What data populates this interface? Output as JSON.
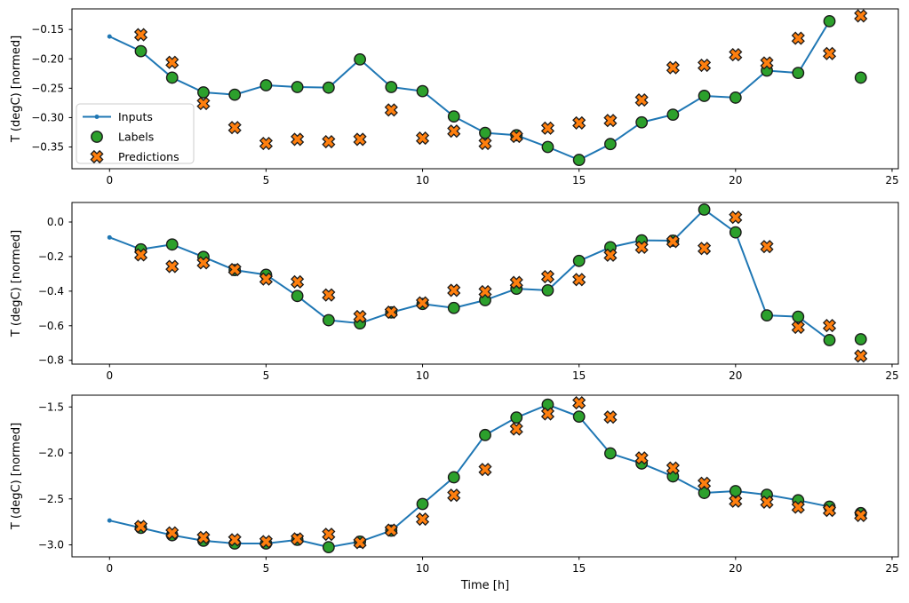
{
  "figure": {
    "xlabel": "Time [h]",
    "ylabel": "T (degC) [normed]",
    "background": "#ffffff",
    "axis_color": "#000000",
    "legend": {
      "entries": [
        {
          "label": "Inputs",
          "marker": "line-dot",
          "color": "#1f77b4"
        },
        {
          "label": "Labels",
          "marker": "circle",
          "color": "#2ca02c"
        },
        {
          "label": "Predictions",
          "marker": "x-cross",
          "color": "#ff7f0e"
        }
      ],
      "border_color": "#cccccc"
    },
    "marker_edge_color": "#1a1a1a",
    "x_ticks": [
      0,
      5,
      10,
      15,
      20,
      25
    ],
    "x_tick_labels": [
      "0",
      "5",
      "10",
      "15",
      "20",
      "25"
    ],
    "xlim": [
      -1.2,
      25.2
    ]
  },
  "chart_data": [
    {
      "type": "line",
      "title": "",
      "ylabel": "T (degC) [normed]",
      "xlabel": "",
      "ylim": [
        -0.387,
        -0.115
      ],
      "yticks": [
        -0.15,
        -0.2,
        -0.25,
        -0.3,
        -0.35
      ],
      "ytick_labels": [
        "−0.15",
        "−0.20",
        "−0.25",
        "−0.30",
        "−0.35"
      ],
      "grid": false,
      "legend_position": "center left",
      "series": [
        {
          "name": "Inputs",
          "style": "line+dots",
          "x": [
            0,
            1,
            2,
            3,
            4,
            5,
            6,
            7,
            8,
            9,
            10,
            11,
            12,
            13,
            14,
            15,
            16,
            17,
            18,
            19,
            20,
            21,
            22,
            23
          ],
          "y": [
            -0.162,
            -0.187,
            -0.232,
            -0.257,
            -0.261,
            -0.245,
            -0.248,
            -0.249,
            -0.201,
            -0.248,
            -0.255,
            -0.298,
            -0.326,
            -0.33,
            -0.35,
            -0.372,
            -0.345,
            -0.308,
            -0.295,
            -0.263,
            -0.266,
            -0.22,
            -0.224,
            -0.136
          ]
        },
        {
          "name": "Labels",
          "style": "scatter-circle",
          "x": [
            1,
            2,
            3,
            4,
            5,
            6,
            7,
            8,
            9,
            10,
            11,
            12,
            13,
            14,
            15,
            16,
            17,
            18,
            19,
            20,
            21,
            22,
            23,
            24
          ],
          "y": [
            -0.187,
            -0.232,
            -0.257,
            -0.261,
            -0.245,
            -0.248,
            -0.249,
            -0.201,
            -0.248,
            -0.255,
            -0.298,
            -0.326,
            -0.33,
            -0.35,
            -0.372,
            -0.345,
            -0.308,
            -0.295,
            -0.263,
            -0.266,
            -0.22,
            -0.224,
            -0.136,
            -0.232
          ]
        },
        {
          "name": "Predictions",
          "style": "scatter-x",
          "x": [
            1,
            2,
            3,
            4,
            5,
            6,
            7,
            8,
            9,
            10,
            11,
            12,
            13,
            14,
            15,
            16,
            17,
            18,
            19,
            20,
            21,
            22,
            23,
            24
          ],
          "y": [
            -0.159,
            -0.206,
            -0.276,
            -0.317,
            -0.344,
            -0.337,
            -0.341,
            -0.337,
            -0.287,
            -0.335,
            -0.323,
            -0.344,
            -0.332,
            -0.318,
            -0.309,
            -0.305,
            -0.27,
            -0.215,
            -0.211,
            -0.193,
            -0.207,
            -0.165,
            -0.191,
            -0.127
          ]
        }
      ]
    },
    {
      "type": "line",
      "title": "",
      "ylabel": "T (degC) [normed]",
      "xlabel": "",
      "ylim": [
        -0.822,
        0.113
      ],
      "yticks": [
        0.0,
        -0.2,
        -0.4,
        -0.6,
        -0.8
      ],
      "ytick_labels": [
        "0.0",
        "−0.2",
        "−0.4",
        "−0.6",
        "−0.8"
      ],
      "grid": false,
      "legend_position": "none",
      "series": [
        {
          "name": "Inputs",
          "style": "line+dots",
          "x": [
            0,
            1,
            2,
            3,
            4,
            5,
            6,
            7,
            8,
            9,
            10,
            11,
            12,
            13,
            14,
            15,
            16,
            17,
            18,
            19,
            20,
            21,
            22,
            23
          ],
          "y": [
            -0.089,
            -0.158,
            -0.13,
            -0.202,
            -0.278,
            -0.305,
            -0.428,
            -0.568,
            -0.586,
            -0.523,
            -0.474,
            -0.497,
            -0.452,
            -0.386,
            -0.395,
            -0.225,
            -0.146,
            -0.106,
            -0.108,
            0.072,
            -0.06,
            -0.54,
            -0.548,
            -0.683
          ]
        },
        {
          "name": "Labels",
          "style": "scatter-circle",
          "x": [
            1,
            2,
            3,
            4,
            5,
            6,
            7,
            8,
            9,
            10,
            11,
            12,
            13,
            14,
            15,
            16,
            17,
            18,
            19,
            20,
            21,
            22,
            23,
            24
          ],
          "y": [
            -0.158,
            -0.13,
            -0.202,
            -0.278,
            -0.305,
            -0.428,
            -0.568,
            -0.586,
            -0.523,
            -0.474,
            -0.497,
            -0.452,
            -0.386,
            -0.395,
            -0.225,
            -0.146,
            -0.106,
            -0.108,
            0.072,
            -0.06,
            -0.54,
            -0.548,
            -0.683,
            -0.678
          ]
        },
        {
          "name": "Predictions",
          "style": "scatter-x",
          "x": [
            1,
            2,
            3,
            4,
            5,
            6,
            7,
            8,
            9,
            10,
            11,
            12,
            13,
            14,
            15,
            16,
            17,
            18,
            19,
            20,
            21,
            22,
            23,
            24
          ],
          "y": [
            -0.19,
            -0.257,
            -0.236,
            -0.275,
            -0.33,
            -0.346,
            -0.422,
            -0.547,
            -0.522,
            -0.468,
            -0.395,
            -0.403,
            -0.35,
            -0.316,
            -0.333,
            -0.192,
            -0.146,
            -0.113,
            -0.153,
            0.027,
            -0.142,
            -0.609,
            -0.599,
            -0.775
          ]
        }
      ]
    },
    {
      "type": "line",
      "title": "",
      "ylabel": "T (degC) [normed]",
      "xlabel": "Time [h]",
      "ylim": [
        -3.13,
        -1.372
      ],
      "yticks": [
        -1.5,
        -2.0,
        -2.5,
        -3.0
      ],
      "ytick_labels": [
        "−1.5",
        "−2.0",
        "−2.5",
        "−3.0"
      ],
      "grid": false,
      "legend_position": "none",
      "series": [
        {
          "name": "Inputs",
          "style": "line+dots",
          "x": [
            0,
            1,
            2,
            3,
            4,
            5,
            6,
            7,
            8,
            9,
            10,
            11,
            12,
            13,
            14,
            15,
            16,
            17,
            18,
            19,
            20,
            21,
            22,
            23
          ],
          "y": [
            -2.735,
            -2.815,
            -2.895,
            -2.955,
            -2.985,
            -2.985,
            -2.945,
            -3.025,
            -2.965,
            -2.845,
            -2.555,
            -2.265,
            -1.805,
            -1.615,
            -1.475,
            -1.605,
            -2.005,
            -2.115,
            -2.255,
            -2.435,
            -2.415,
            -2.455,
            -2.515,
            -2.585
          ]
        },
        {
          "name": "Labels",
          "style": "scatter-circle",
          "x": [
            1,
            2,
            3,
            4,
            5,
            6,
            7,
            8,
            9,
            10,
            11,
            12,
            13,
            14,
            15,
            16,
            17,
            18,
            19,
            20,
            21,
            22,
            23,
            24
          ],
          "y": [
            -2.815,
            -2.895,
            -2.955,
            -2.985,
            -2.985,
            -2.945,
            -3.025,
            -2.965,
            -2.845,
            -2.555,
            -2.265,
            -1.805,
            -1.615,
            -1.475,
            -1.605,
            -2.005,
            -2.115,
            -2.255,
            -2.435,
            -2.415,
            -2.455,
            -2.515,
            -2.585,
            -2.655
          ]
        },
        {
          "name": "Predictions",
          "style": "scatter-x",
          "x": [
            1,
            2,
            3,
            4,
            5,
            6,
            7,
            8,
            9,
            10,
            11,
            12,
            13,
            14,
            15,
            16,
            17,
            18,
            19,
            20,
            21,
            22,
            23,
            24
          ],
          "y": [
            -2.8,
            -2.87,
            -2.92,
            -2.945,
            -2.965,
            -2.935,
            -2.885,
            -2.975,
            -2.84,
            -2.72,
            -2.46,
            -2.18,
            -1.74,
            -1.575,
            -1.455,
            -1.61,
            -2.055,
            -2.165,
            -2.33,
            -2.525,
            -2.535,
            -2.59,
            -2.625,
            -2.68
          ]
        }
      ]
    }
  ]
}
